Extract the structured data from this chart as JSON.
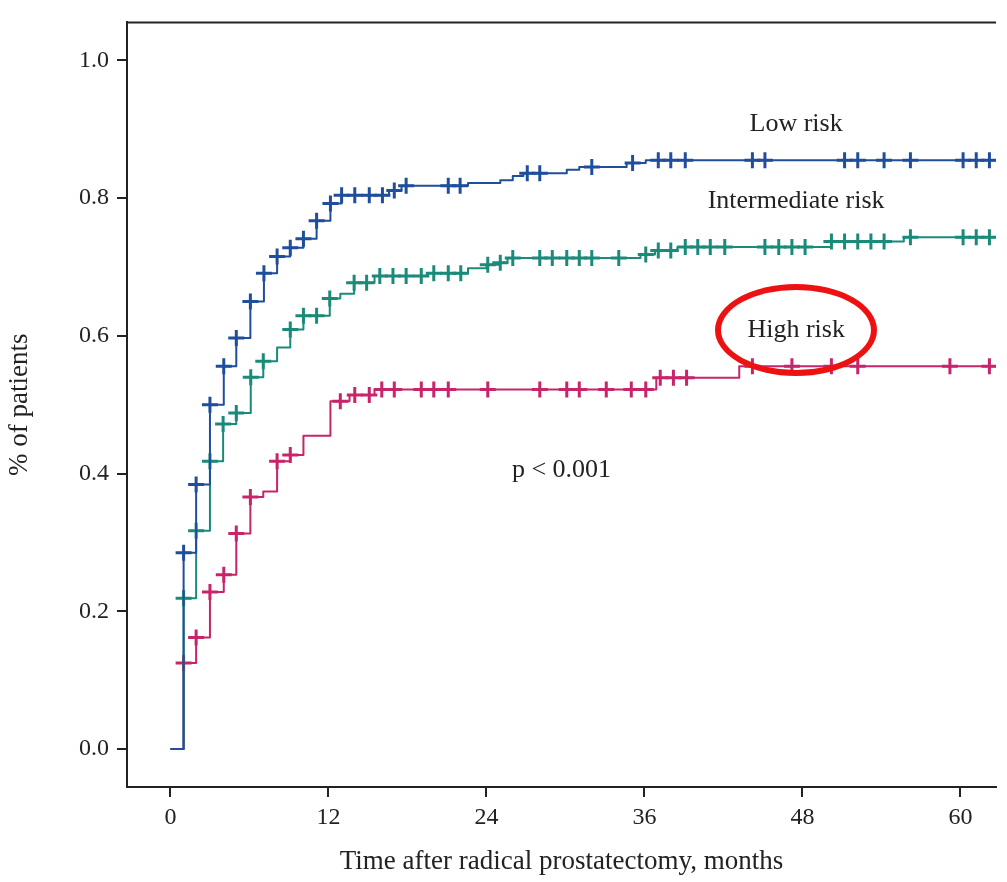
{
  "chart_data": {
    "type": "step",
    "xlabel": "Time after radical prostatectomy, months",
    "ylabel": "% of patients",
    "xlim": [
      -3.3,
      62.7
    ],
    "ylim": [
      -0.055,
      1.055
    ],
    "xticks": [
      0,
      12,
      24,
      36,
      48,
      60
    ],
    "yticks": [
      {
        "value": 0,
        "label": "0.0"
      },
      0.2,
      0.4,
      0.6,
      0.8,
      {
        "value": 1,
        "label": "1.0"
      }
    ],
    "annotations": [
      "p < 0.001"
    ],
    "series": [
      {
        "name": "Low risk",
        "marker": "none",
        "color": "#1f4e9c",
        "x": [
          0,
          1.0,
          1.95,
          3.0,
          4.05,
          5.0,
          6.07,
          7.1,
          8.1,
          9.1,
          10.1,
          11.1,
          12.15,
          13.0,
          16.6,
          17.55,
          22.6,
          25.05,
          26.0,
          26.8,
          30.1,
          31.05,
          34.65,
          36.1,
          62.7
        ],
        "values": [
          0,
          0.285,
          0.384,
          0.5,
          0.556,
          0.597,
          0.65,
          0.691,
          0.715,
          0.728,
          0.741,
          0.767,
          0.792,
          0.804,
          0.811,
          0.818,
          0.822,
          0.826,
          0.832,
          0.836,
          0.841,
          0.845,
          0.851,
          0.855,
          0.855
        ]
      },
      {
        "name": "Intermediate risk",
        "marker": "none",
        "color": "#1a8a7a",
        "x": [
          0,
          1.0,
          1.95,
          3.0,
          4.0,
          5.0,
          6.1,
          7.05,
          8.1,
          9.1,
          10.1,
          12.1,
          12.9,
          13.95,
          15.5,
          19.5,
          22.6,
          24.0,
          25.0,
          25.6,
          35.7,
          36.8,
          38.5,
          50.2,
          55.7,
          62.7
        ],
        "values": [
          0,
          0.219,
          0.317,
          0.418,
          0.472,
          0.488,
          0.54,
          0.563,
          0.583,
          0.609,
          0.629,
          0.654,
          0.661,
          0.677,
          0.687,
          0.691,
          0.698,
          0.703,
          0.706,
          0.713,
          0.718,
          0.724,
          0.729,
          0.737,
          0.743,
          0.743
        ]
      },
      {
        "name": "High risk",
        "marker": "none",
        "color": "#c8246a",
        "x": [
          0,
          1.0,
          1.95,
          3.0,
          4.05,
          5.0,
          6.07,
          7.05,
          8.1,
          9.1,
          10.1,
          12.15,
          13.6,
          15.5,
          36.9,
          43.2,
          62.7
        ],
        "values": [
          0,
          0.125,
          0.162,
          0.228,
          0.253,
          0.313,
          0.366,
          0.374,
          0.418,
          0.427,
          0.455,
          0.505,
          0.514,
          0.522,
          0.539,
          0.556,
          0.556
        ]
      },
      {
        "type": "scatter",
        "marker": "cross",
        "color": "#1f4e9c",
        "x": [
          1.0,
          1.95,
          3.0,
          4.05,
          5.0,
          6.07,
          7.1,
          8.1,
          9.1,
          10.1,
          11.1,
          12.15,
          13.0,
          14.0,
          15.1,
          16.1,
          17.0,
          17.9,
          21.1,
          22.0,
          27.1,
          28.05,
          32.0,
          35.1,
          37.05,
          38.0,
          39.1,
          44.2,
          45.15,
          51.2,
          52.2,
          54.2,
          56.2,
          60.2,
          61.2,
          62.2
        ],
        "values": [
          0.285,
          0.384,
          0.5,
          0.556,
          0.597,
          0.65,
          0.691,
          0.715,
          0.728,
          0.741,
          0.767,
          0.792,
          0.804,
          0.804,
          0.804,
          0.804,
          0.811,
          0.818,
          0.818,
          0.818,
          0.836,
          0.836,
          0.845,
          0.851,
          0.855,
          0.855,
          0.855,
          0.855,
          0.855,
          0.855,
          0.855,
          0.855,
          0.855,
          0.855,
          0.855,
          0.855
        ]
      },
      {
        "type": "scatter",
        "marker": "cross",
        "color": "#1a8a7a",
        "x": [
          1.0,
          1.95,
          3.0,
          4.0,
          5.0,
          6.1,
          7.05,
          9.1,
          10.1,
          11.1,
          12.1,
          13.95,
          14.9,
          15.9,
          16.9,
          17.9,
          19.05,
          20.0,
          21.1,
          22.05,
          24.1,
          25.05,
          26.0,
          28.05,
          29.0,
          30.1,
          31.05,
          32.0,
          34.05,
          36.1,
          37.05,
          38.0,
          39.1,
          40.05,
          41.0,
          42.1,
          45.15,
          46.2,
          47.2,
          48.2,
          50.2,
          51.2,
          52.2,
          53.2,
          54.2,
          56.2,
          60.2,
          61.2,
          62.2
        ],
        "values": [
          0.219,
          0.317,
          0.418,
          0.472,
          0.488,
          0.54,
          0.563,
          0.609,
          0.629,
          0.629,
          0.654,
          0.677,
          0.677,
          0.687,
          0.687,
          0.687,
          0.687,
          0.691,
          0.691,
          0.691,
          0.703,
          0.706,
          0.713,
          0.713,
          0.713,
          0.713,
          0.713,
          0.713,
          0.713,
          0.718,
          0.724,
          0.724,
          0.729,
          0.729,
          0.729,
          0.729,
          0.729,
          0.729,
          0.729,
          0.729,
          0.737,
          0.737,
          0.737,
          0.737,
          0.737,
          0.743,
          0.743,
          0.743,
          0.743
        ]
      },
      {
        "type": "scatter",
        "marker": "cross",
        "color": "#c8246a",
        "x": [
          1.0,
          1.95,
          3.0,
          4.05,
          5.0,
          6.07,
          8.1,
          9.1,
          12.9,
          14.0,
          15.1,
          16.05,
          17.0,
          19.05,
          20.0,
          21.1,
          24.1,
          28.05,
          30.1,
          31.05,
          33.1,
          35.0,
          36.1,
          37.2,
          38.2,
          39.2,
          44.2,
          47.2,
          50.2,
          52.2,
          59.2,
          62.2
        ],
        "values": [
          0.125,
          0.162,
          0.228,
          0.253,
          0.313,
          0.366,
          0.418,
          0.427,
          0.505,
          0.514,
          0.514,
          0.522,
          0.522,
          0.522,
          0.522,
          0.522,
          0.522,
          0.522,
          0.522,
          0.522,
          0.522,
          0.522,
          0.522,
          0.539,
          0.539,
          0.539,
          0.556,
          0.556,
          0.556,
          0.556,
          0.556,
          0.556
        ]
      }
    ]
  }
}
